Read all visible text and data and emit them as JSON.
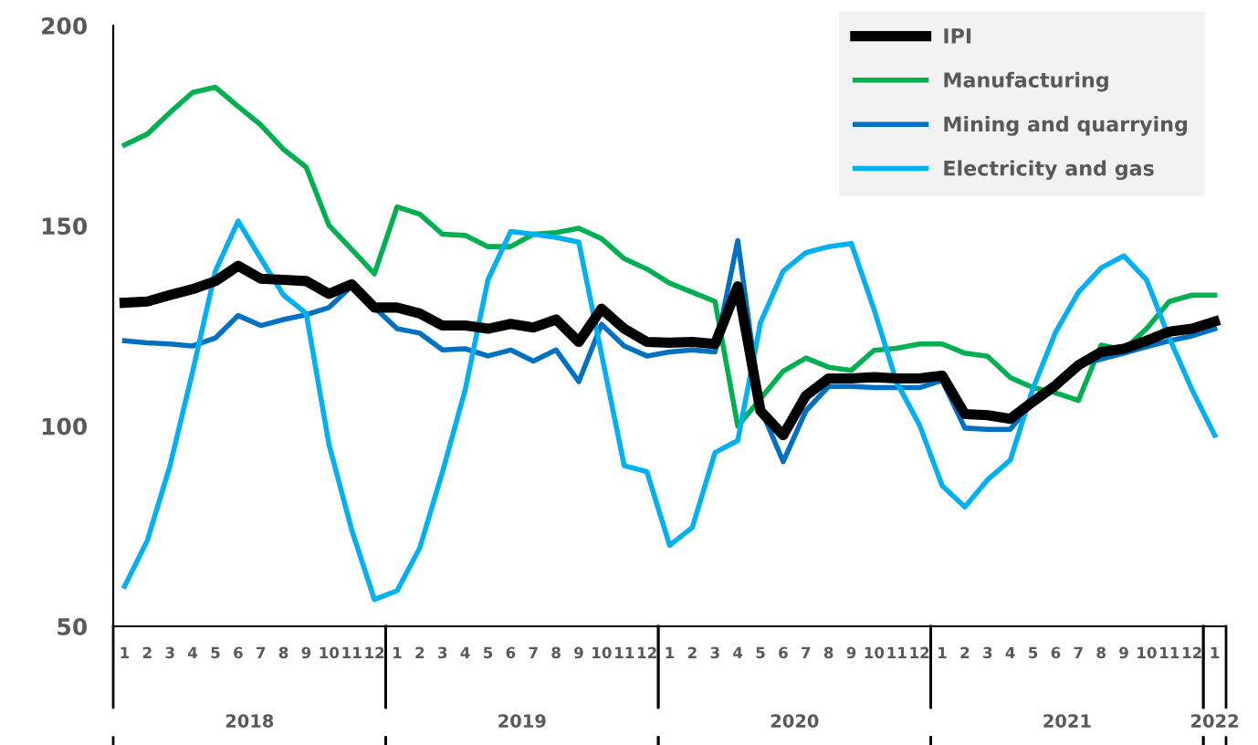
{
  "chart_data": {
    "type": "line",
    "categories": [
      "1",
      "2",
      "3",
      "4",
      "5",
      "6",
      "7",
      "8",
      "9",
      "10",
      "11",
      "12",
      "1",
      "2",
      "3",
      "4",
      "5",
      "6",
      "7",
      "8",
      "9",
      "10",
      "11",
      "12",
      "1",
      "2",
      "3",
      "4",
      "5",
      "6",
      "7",
      "8",
      "9",
      "10",
      "11",
      "12",
      "1",
      "2",
      "3",
      "4",
      "5",
      "6",
      "7",
      "8",
      "9",
      "10",
      "11",
      "12",
      "1"
    ],
    "series": [
      {
        "name": "IPI",
        "color": "#000000",
        "values": [
          130.8,
          131.1,
          132.7,
          134.2,
          136.2,
          140.0,
          136.8,
          136.5,
          136.2,
          133.0,
          135.4,
          129.6,
          129.6,
          128.1,
          125.1,
          125.1,
          124.3,
          125.5,
          124.6,
          126.6,
          121.0,
          129.3,
          124.3,
          121.0,
          120.8,
          121.0,
          120.5,
          134.9,
          103.8,
          97.7,
          107.6,
          111.9,
          111.9,
          112.2,
          111.9,
          111.9,
          112.6,
          103.0,
          102.7,
          101.8,
          106.1,
          110.2,
          115.2,
          118.5,
          119.3,
          121.3,
          123.6,
          124.3,
          126.1
        ]
      },
      {
        "name": "Manufacturing",
        "color": "#00b050",
        "values": [
          170.2,
          172.9,
          178.3,
          183.3,
          184.6,
          179.8,
          175.2,
          169.1,
          164.6,
          150.1,
          144.1,
          138.0,
          154.7,
          152.9,
          147.9,
          147.6,
          144.8,
          144.8,
          147.9,
          148.3,
          149.4,
          146.8,
          141.8,
          139.2,
          135.7,
          133.4,
          131.1,
          100.0,
          106.8,
          113.7,
          117.0,
          114.7,
          113.9,
          118.9,
          119.4,
          120.5,
          120.5,
          118.2,
          117.4,
          112.1,
          109.6,
          108.3,
          106.4,
          120.2,
          119.0,
          124.3,
          131.1,
          132.7,
          132.7
        ]
      },
      {
        "name": "Mining and quarrying",
        "color": "#0070c0",
        "values": [
          121.3,
          120.8,
          120.5,
          120.0,
          122.0,
          127.6,
          125.1,
          126.6,
          127.8,
          129.6,
          134.9,
          129.6,
          124.3,
          123.2,
          119.0,
          119.3,
          117.5,
          119.0,
          116.2,
          119.0,
          111.1,
          125.4,
          120.0,
          117.5,
          118.5,
          119.0,
          118.5,
          146.3,
          104.5,
          91.1,
          103.8,
          109.9,
          109.9,
          109.6,
          109.6,
          109.6,
          111.4,
          99.5,
          99.2,
          99.2,
          106.1,
          109.9,
          115.2,
          116.7,
          118.2,
          119.8,
          121.3,
          122.5,
          124.3
        ]
      },
      {
        "name": "Electricity and gas",
        "color": "#00b0f0",
        "values": [
          60.0,
          71.4,
          90.1,
          113.7,
          138.7,
          151.2,
          141.8,
          132.7,
          128.1,
          95.4,
          74.1,
          56.7,
          58.9,
          69.6,
          88.6,
          109.1,
          136.5,
          148.6,
          147.9,
          147.1,
          145.9,
          118.0,
          90.1,
          88.6,
          70.2,
          74.7,
          93.4,
          96.4,
          125.8,
          138.7,
          143.3,
          144.8,
          145.6,
          129.1,
          110.9,
          100.3,
          85.1,
          79.8,
          86.6,
          91.5,
          109.4,
          123.5,
          133.4,
          139.5,
          142.5,
          136.5,
          122.0,
          109.1,
          97.7
        ]
      }
    ],
    "ylim": [
      50,
      200
    ],
    "yticks": [
      50,
      100,
      150,
      200
    ],
    "annotations": [
      "2018",
      "2019",
      "2020",
      "2021",
      "2022"
    ],
    "legend": "top right",
    "grid": false
  }
}
